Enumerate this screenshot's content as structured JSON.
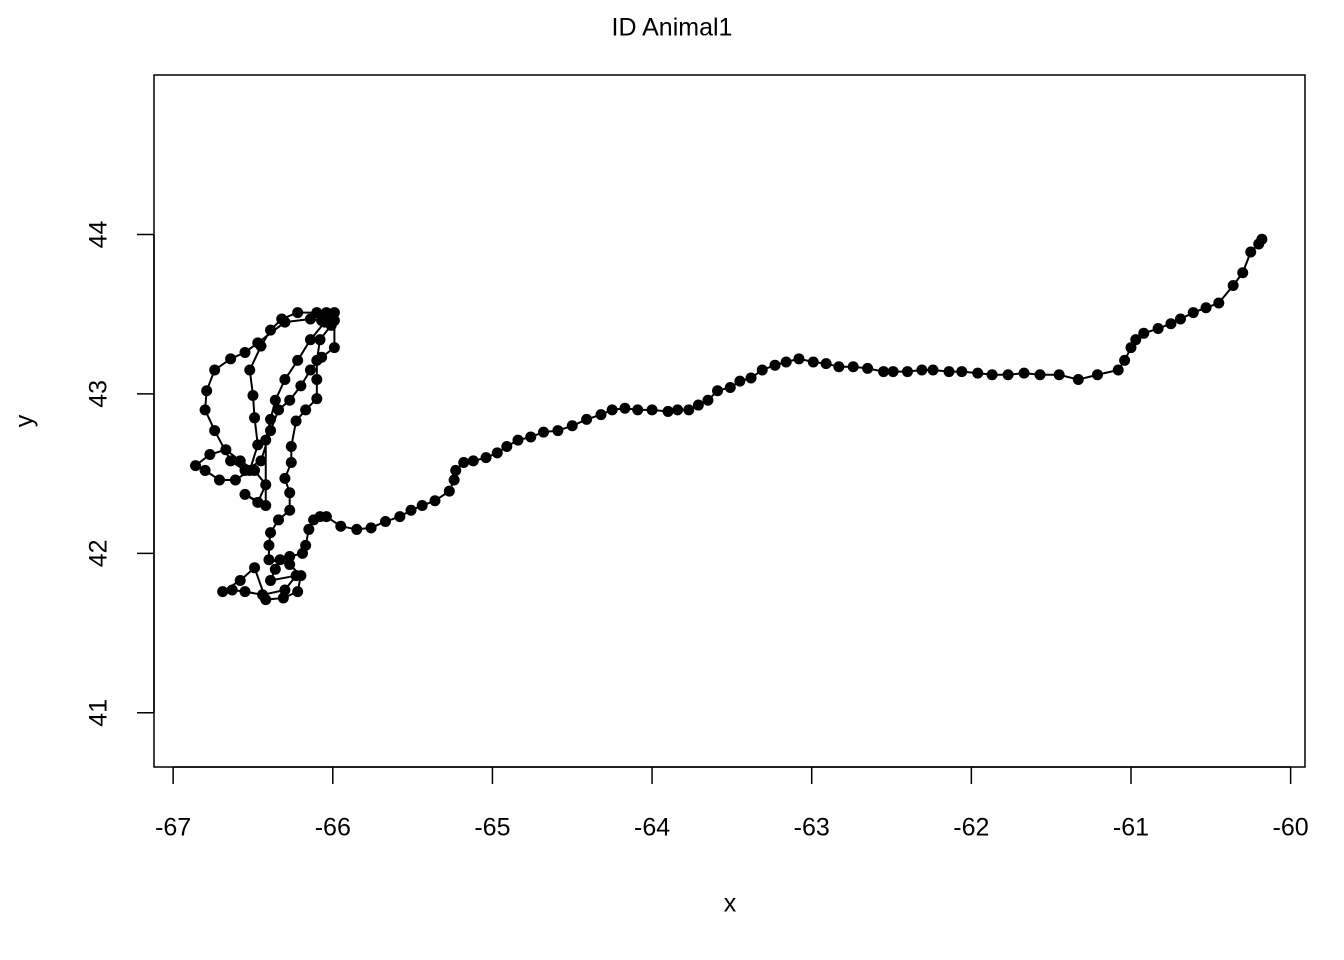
{
  "chart_data": {
    "type": "line",
    "markers": true,
    "title": "ID Animal1",
    "xlabel": "x",
    "ylabel": "y",
    "color": "#000000",
    "xlim": [
      -67.12,
      -59.91
    ],
    "ylim": [
      40.66,
      45.0
    ],
    "xticks": [
      -67,
      -66,
      -65,
      -64,
      -63,
      -62,
      -61,
      -60
    ],
    "yticks": [
      41,
      42,
      43,
      44
    ],
    "x": [
      -60.18,
      -60.2,
      -60.25,
      -60.3,
      -60.36,
      -60.45,
      -60.53,
      -60.61,
      -60.69,
      -60.75,
      -60.83,
      -60.92,
      -60.97,
      -61.0,
      -61.04,
      -61.08,
      -61.21,
      -61.33,
      -61.45,
      -61.57,
      -61.67,
      -61.77,
      -61.87,
      -61.96,
      -62.06,
      -62.14,
      -62.24,
      -62.31,
      -62.4,
      -62.49,
      -62.55,
      -62.65,
      -62.74,
      -62.83,
      -62.91,
      -62.99,
      -63.08,
      -63.16,
      -63.23,
      -63.31,
      -63.38,
      -63.45,
      -63.51,
      -63.59,
      -63.65,
      -63.71,
      -63.77,
      -63.84,
      -63.9,
      -64.0,
      -64.09,
      -64.17,
      -64.25,
      -64.32,
      -64.41,
      -64.5,
      -64.59,
      -64.68,
      -64.76,
      -64.84,
      -64.91,
      -64.97,
      -65.04,
      -65.12,
      -65.18,
      -65.23,
      -65.24,
      -65.27,
      -65.36,
      -65.44,
      -65.51,
      -65.58,
      -65.67,
      -65.76,
      -65.85,
      -65.95,
      -66.04,
      -66.08,
      -66.12,
      -66.15,
      -66.17,
      -66.19,
      -66.27,
      -66.33,
      -66.36,
      -66.39,
      -66.23,
      -66.3,
      -66.44,
      -66.55,
      -66.63,
      -66.69,
      -66.58,
      -66.49,
      -66.42,
      -66.31,
      -66.22,
      -66.2,
      -66.27,
      -66.4,
      -66.4,
      -66.39,
      -66.34,
      -66.27,
      -66.27,
      -66.3,
      -66.26,
      -66.26,
      -66.23,
      -66.17,
      -66.1,
      -66.1,
      -66.1,
      -66.08,
      -66.01,
      -65.99,
      -66.04,
      -66.1,
      -66.22,
      -66.32,
      -66.39,
      -66.45,
      -66.52,
      -66.5,
      -66.49,
      -66.47,
      -66.52,
      -66.61,
      -66.71,
      -66.8,
      -66.86,
      -66.77,
      -66.67,
      -66.58,
      -66.49,
      -66.42,
      -66.47,
      -66.55,
      -66.42,
      -66.42,
      -66.39,
      -66.36,
      -66.3,
      -66.22,
      -66.14,
      -66.05,
      -65.99,
      -65.99,
      -66.07,
      -66.14,
      -66.2,
      -66.27,
      -66.34,
      -66.39,
      -66.45,
      -66.55,
      -66.64,
      -66.74,
      -66.8,
      -66.79,
      -66.74,
      -66.64,
      -66.55,
      -66.47,
      -66.3,
      -66.14,
      -66.07,
      -66.02
    ],
    "values": [
      43.97,
      43.94,
      43.89,
      43.76,
      43.68,
      43.57,
      43.54,
      43.51,
      43.47,
      43.44,
      43.41,
      43.38,
      43.34,
      43.29,
      43.21,
      43.15,
      43.12,
      43.09,
      43.12,
      43.12,
      43.13,
      43.12,
      43.12,
      43.13,
      43.14,
      43.14,
      43.15,
      43.15,
      43.14,
      43.14,
      43.14,
      43.16,
      43.17,
      43.17,
      43.19,
      43.2,
      43.22,
      43.2,
      43.18,
      43.15,
      43.1,
      43.08,
      43.04,
      43.02,
      42.96,
      42.93,
      42.9,
      42.9,
      42.89,
      42.9,
      42.9,
      42.91,
      42.9,
      42.87,
      42.84,
      42.8,
      42.77,
      42.76,
      42.73,
      42.71,
      42.67,
      42.63,
      42.6,
      42.58,
      42.57,
      42.52,
      42.46,
      42.39,
      42.33,
      42.3,
      42.27,
      42.23,
      42.2,
      42.16,
      42.15,
      42.17,
      42.23,
      42.23,
      42.21,
      42.15,
      42.05,
      42.0,
      41.98,
      41.96,
      41.9,
      41.83,
      41.86,
      41.77,
      41.74,
      41.76,
      41.77,
      41.76,
      41.83,
      41.91,
      41.71,
      41.72,
      41.76,
      41.86,
      41.93,
      41.96,
      42.05,
      42.13,
      42.21,
      42.27,
      42.38,
      42.47,
      42.57,
      42.67,
      42.83,
      42.9,
      42.97,
      43.09,
      43.21,
      43.34,
      43.43,
      43.51,
      43.51,
      43.51,
      43.51,
      43.47,
      43.4,
      43.3,
      43.15,
      42.99,
      42.85,
      42.68,
      42.52,
      42.46,
      42.46,
      42.52,
      42.55,
      42.62,
      42.65,
      42.58,
      42.52,
      42.43,
      42.32,
      42.37,
      42.3,
      42.71,
      42.84,
      42.96,
      43.09,
      43.21,
      43.34,
      43.45,
      43.46,
      43.29,
      43.23,
      43.15,
      43.05,
      42.96,
      42.9,
      42.77,
      42.58,
      42.52,
      42.58,
      42.77,
      42.9,
      43.02,
      43.15,
      43.22,
      43.26,
      43.32,
      43.45,
      43.47,
      43.46,
      43.47
    ]
  }
}
